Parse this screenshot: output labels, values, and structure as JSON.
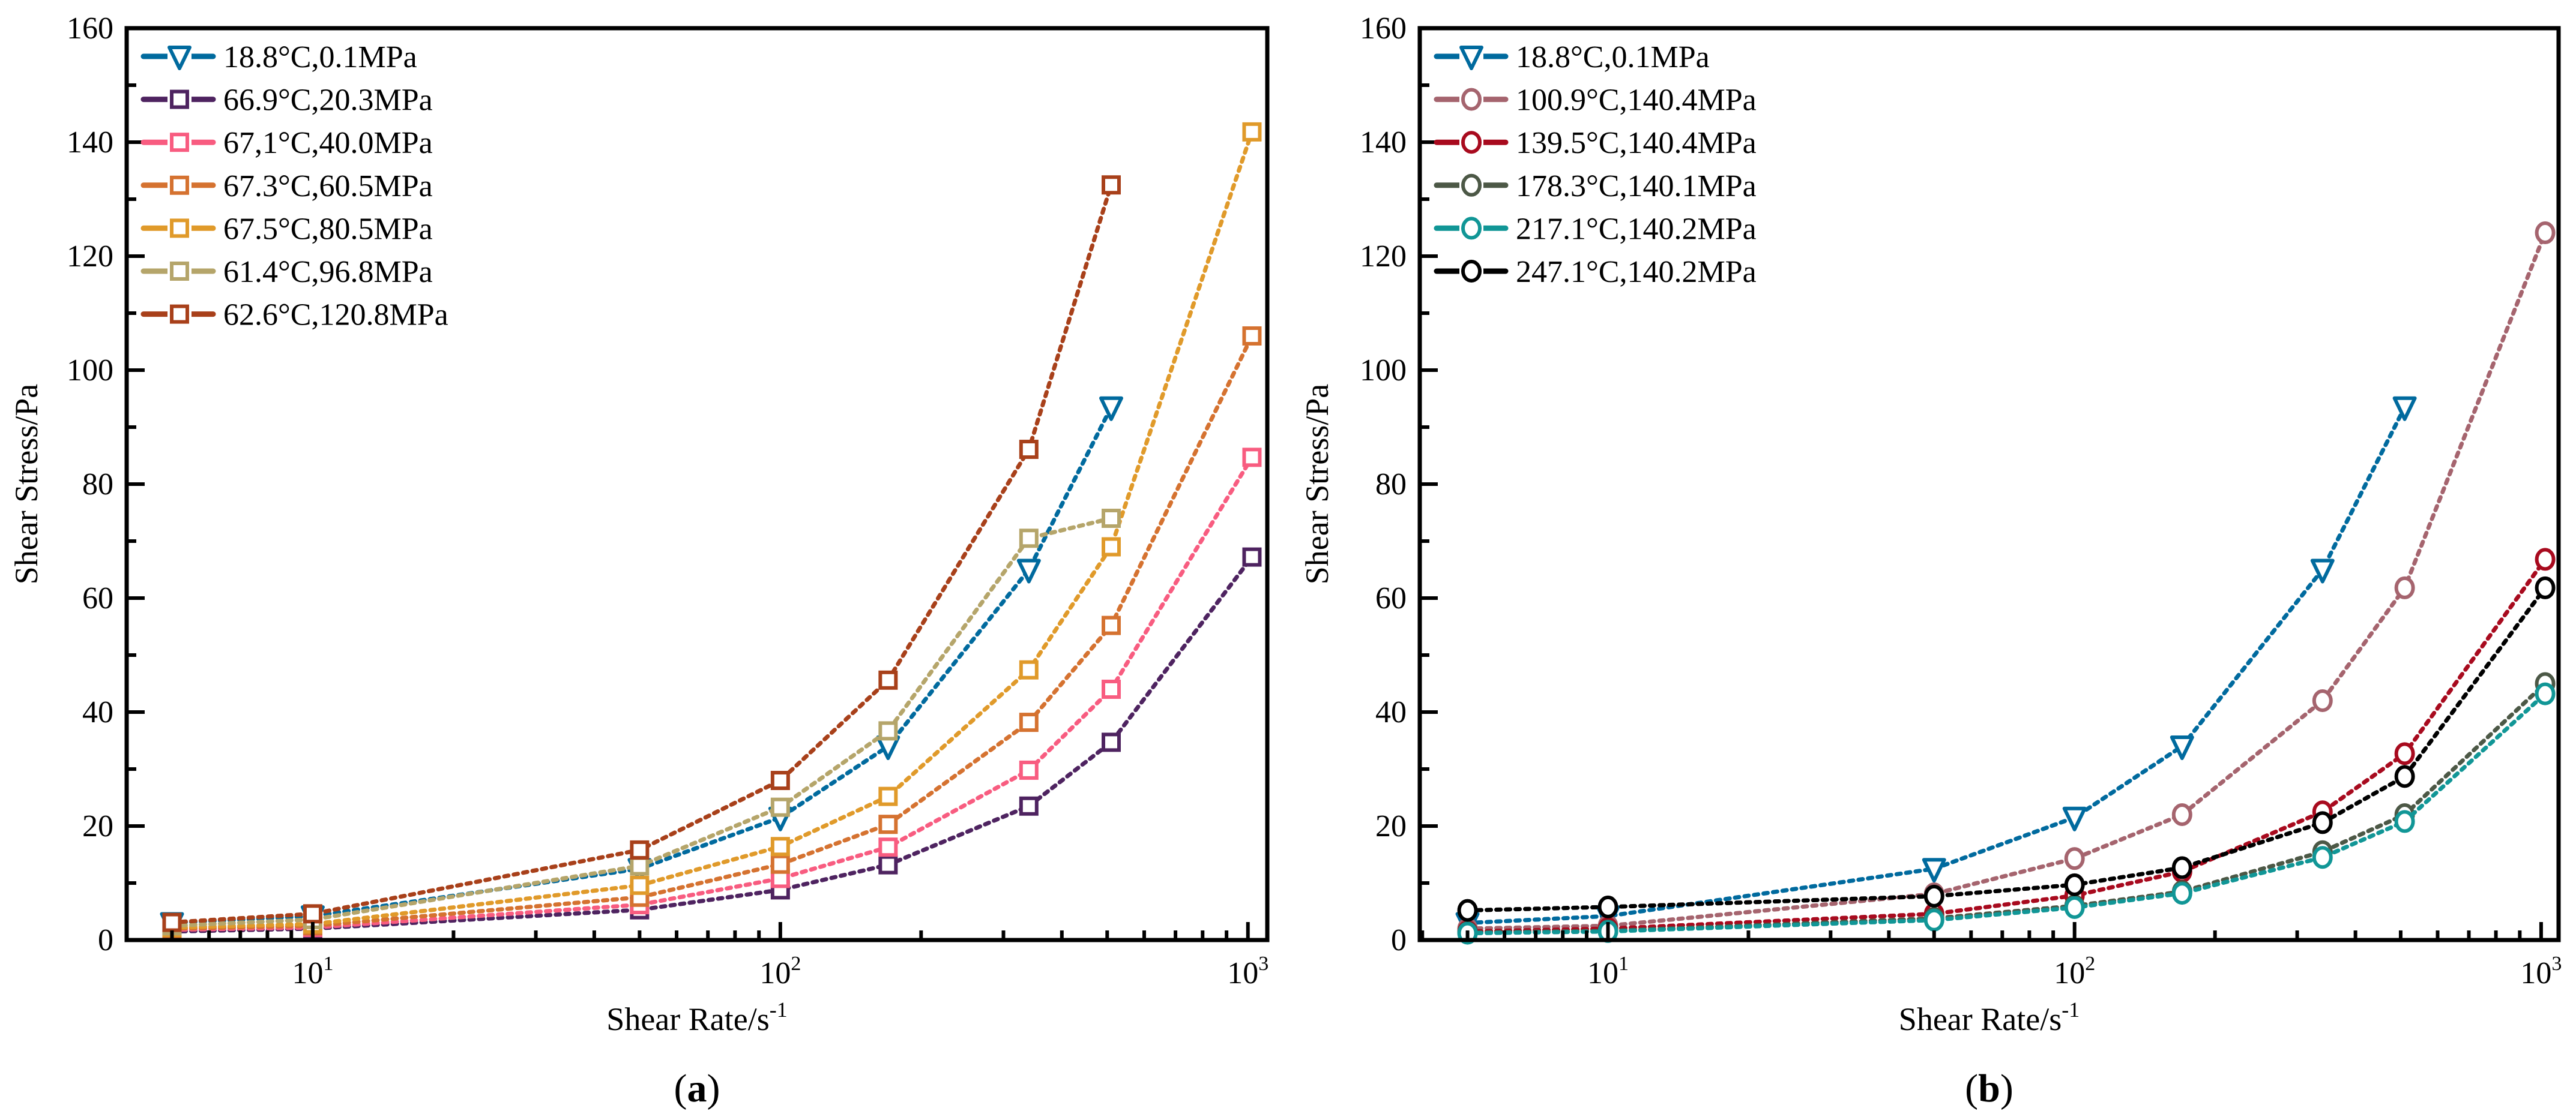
{
  "chart_data": [
    {
      "type": "line",
      "panel_label": {
        "open": "(",
        "letter": "a",
        "close": ")"
      },
      "xlabel": "Shear Rate/s",
      "xlabel_exp": "-1",
      "ylabel": "Shear Stress/Pa",
      "xscale": "log",
      "xlim": [
        4,
        1100
      ],
      "ylim": [
        0,
        160
      ],
      "yticks": [
        0,
        20,
        40,
        60,
        80,
        100,
        120,
        140,
        160
      ],
      "xticks": [
        {
          "value": 10,
          "base": "10",
          "exp": "1"
        },
        {
          "value": 100,
          "base": "10",
          "exp": "2"
        },
        {
          "value": 1000,
          "base": "10",
          "exp": "3"
        }
      ],
      "legend_position": "top-left",
      "x": [
        5,
        10,
        50,
        100,
        170,
        340,
        510,
        1020
      ],
      "series": [
        {
          "name": "18.8°C,0.1MPa",
          "color": "#006a9e",
          "marker": "triangle-down",
          "values": [
            3.0,
            4.2,
            12.5,
            21.5,
            34.0,
            65.0,
            93.5,
            null
          ]
        },
        {
          "name": "66.9°C,20.3MPa",
          "color": "#4e2360",
          "marker": "square",
          "values": [
            1.5,
            2.0,
            5.3,
            8.8,
            13.2,
            23.5,
            34.7,
            67.2
          ]
        },
        {
          "name": "67,1°C,40.0MPa",
          "color": "#f85c80",
          "marker": "square",
          "values": [
            1.8,
            2.2,
            6.2,
            10.8,
            16.3,
            29.8,
            44.0,
            84.7
          ]
        },
        {
          "name": "67.3°C,60.5MPa",
          "color": "#d57230",
          "marker": "square",
          "values": [
            2.0,
            2.5,
            7.5,
            13.3,
            20.3,
            38.2,
            55.2,
            106.0
          ]
        },
        {
          "name": "67.5°C,80.5MPa",
          "color": "#e09a2a",
          "marker": "square",
          "values": [
            2.2,
            2.8,
            9.6,
            16.4,
            25.2,
            47.4,
            69.0,
            141.8
          ]
        },
        {
          "name": "61.4°C,96.8MPa",
          "color": "#b5a56a",
          "marker": "square",
          "values": [
            2.5,
            3.6,
            13.0,
            23.3,
            36.7,
            70.5,
            74.0,
            null
          ]
        },
        {
          "name": "62.6°C,120.8MPa",
          "color": "#a8401a",
          "marker": "square",
          "values": [
            3.1,
            4.6,
            15.8,
            28.0,
            45.6,
            86.1,
            132.5,
            null
          ]
        }
      ]
    },
    {
      "type": "line",
      "panel_label": {
        "open": "(",
        "letter": "b",
        "close": ")"
      },
      "xlabel": "Shear Rate/s",
      "xlabel_exp": "-1",
      "ylabel": "Shear Stress/Pa",
      "xscale": "log",
      "xlim": [
        3.95,
        1090
      ],
      "ylim": [
        0,
        160
      ],
      "yticks": [
        0,
        20,
        40,
        60,
        80,
        100,
        120,
        140,
        160
      ],
      "xticks": [
        {
          "value": 10,
          "base": "10",
          "exp": "1"
        },
        {
          "value": 100,
          "base": "10",
          "exp": "2"
        },
        {
          "value": 1000,
          "base": "10",
          "exp": "3"
        }
      ],
      "legend_position": "top-left",
      "x": [
        5,
        10,
        50,
        100,
        170,
        340,
        510,
        1020
      ],
      "series": [
        {
          "name": "18.8°C,0.1MPa",
          "color": "#006a9e",
          "marker": "triangle-down",
          "values": [
            3.0,
            4.2,
            12.5,
            21.5,
            34.0,
            65.0,
            93.5,
            null
          ]
        },
        {
          "name": "100.9°C,140.4MPa",
          "color": "#a5646e",
          "marker": "circle",
          "values": [
            2.0,
            2.5,
            8.1,
            14.3,
            22.0,
            42.0,
            61.8,
            124.1
          ]
        },
        {
          "name": "139.5°C,140.4MPa",
          "color": "#a80a1e",
          "marker": "circle",
          "values": [
            1.5,
            2.0,
            4.6,
            7.8,
            12.0,
            22.5,
            32.7,
            66.8
          ]
        },
        {
          "name": "178.3°C,140.1MPa",
          "color": "#4c5846",
          "marker": "circle",
          "values": [
            1.3,
            1.6,
            3.8,
            6.0,
            8.5,
            15.5,
            22.0,
            45.0
          ]
        },
        {
          "name": "217.1°C,140.2MPa",
          "color": "#119696",
          "marker": "circle",
          "values": [
            1.2,
            1.5,
            3.5,
            5.7,
            8.2,
            14.5,
            20.8,
            43.2
          ]
        },
        {
          "name": "247.1°C,140.2MPa",
          "color": "#000000",
          "marker": "circle",
          "values": [
            5.2,
            5.8,
            7.7,
            9.7,
            12.7,
            20.6,
            28.7,
            61.8
          ]
        }
      ]
    }
  ]
}
